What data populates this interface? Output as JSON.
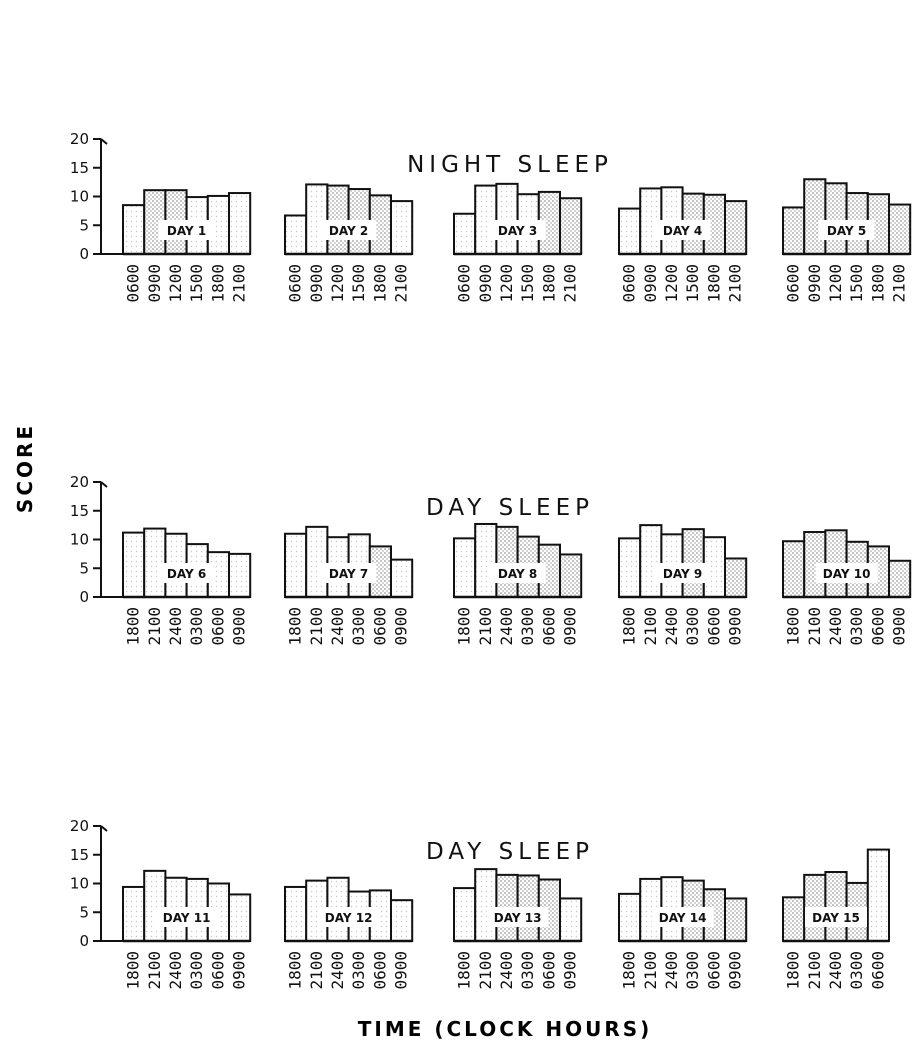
{
  "figure": {
    "yaxis_title": "SCORE",
    "xaxis_title": "TIME (CLOCK HOURS)"
  },
  "style": {
    "ink": "#111111",
    "stipple": "#9a9a9a",
    "background": "#ffffff"
  },
  "chart_data": [
    {
      "type": "bar",
      "title": "NIGHT SLEEP",
      "ylim": [
        0,
        20
      ],
      "yticks": [
        "0",
        "5",
        "10",
        "15",
        "20"
      ],
      "days": [
        {
          "label": "DAY 1",
          "categories": [
            "0600",
            "0900",
            "1200",
            "1500",
            "1800",
            "2100"
          ],
          "values": [
            8.5,
            11.1,
            11.1,
            9.9,
            10.1,
            10.6
          ]
        },
        {
          "label": "DAY 2",
          "categories": [
            "0600",
            "0900",
            "1200",
            "1500",
            "1800",
            "2100"
          ],
          "values": [
            6.7,
            12.1,
            11.9,
            11.3,
            10.2,
            9.2
          ]
        },
        {
          "label": "DAY 3",
          "categories": [
            "0600",
            "0900",
            "1200",
            "1500",
            "1800",
            "2100"
          ],
          "values": [
            7.0,
            11.9,
            12.2,
            10.4,
            10.8,
            9.7
          ]
        },
        {
          "label": "DAY 4",
          "categories": [
            "0600",
            "0900",
            "1200",
            "1500",
            "1800",
            "2100"
          ],
          "values": [
            7.9,
            11.4,
            11.6,
            10.5,
            10.3,
            9.2
          ]
        },
        {
          "label": "DAY 5",
          "categories": [
            "0600",
            "0900",
            "1200",
            "1500",
            "1800",
            "2100"
          ],
          "values": [
            8.1,
            13.0,
            12.3,
            10.6,
            10.4,
            8.6
          ]
        }
      ]
    },
    {
      "type": "bar",
      "title": "DAY SLEEP",
      "ylim": [
        0,
        20
      ],
      "yticks": [
        "0",
        "5",
        "10",
        "15",
        "20"
      ],
      "days": [
        {
          "label": "DAY 6",
          "categories": [
            "1800",
            "2100",
            "2400",
            "0300",
            "0600",
            "0900"
          ],
          "values": [
            11.2,
            11.9,
            11.0,
            9.2,
            7.8,
            7.5
          ]
        },
        {
          "label": "DAY 7",
          "categories": [
            "1800",
            "2100",
            "2400",
            "0300",
            "0600",
            "0900"
          ],
          "values": [
            11.0,
            12.2,
            10.4,
            10.9,
            8.8,
            6.5
          ]
        },
        {
          "label": "DAY 8",
          "categories": [
            "1800",
            "2100",
            "2400",
            "0300",
            "0600",
            "0900"
          ],
          "values": [
            10.2,
            12.7,
            12.2,
            10.5,
            9.1,
            7.4
          ]
        },
        {
          "label": "DAY 9",
          "categories": [
            "1800",
            "2100",
            "2400",
            "0300",
            "0600",
            "0900"
          ],
          "values": [
            10.2,
            12.5,
            10.9,
            11.8,
            10.4,
            6.7
          ]
        },
        {
          "label": "DAY 10",
          "categories": [
            "1800",
            "2100",
            "2400",
            "0300",
            "0600",
            "0900"
          ],
          "values": [
            9.7,
            11.3,
            11.6,
            9.6,
            8.8,
            6.3
          ]
        }
      ]
    },
    {
      "type": "bar",
      "title": "DAY SLEEP",
      "ylim": [
        0,
        20
      ],
      "yticks": [
        "0",
        "5",
        "10",
        "15",
        "20"
      ],
      "days": [
        {
          "label": "DAY 11",
          "categories": [
            "1800",
            "2100",
            "2400",
            "0300",
            "0600",
            "0900"
          ],
          "values": [
            9.4,
            12.2,
            11.0,
            10.8,
            10.0,
            8.1
          ]
        },
        {
          "label": "DAY 12",
          "categories": [
            "1800",
            "2100",
            "2400",
            "0300",
            "0600",
            "0900"
          ],
          "values": [
            9.4,
            10.5,
            11.0,
            8.6,
            8.8,
            7.1
          ]
        },
        {
          "label": "DAY 13",
          "categories": [
            "1800",
            "2100",
            "2400",
            "0300",
            "0600",
            "0900"
          ],
          "values": [
            9.2,
            12.5,
            11.5,
            11.4,
            10.7,
            7.4
          ]
        },
        {
          "label": "DAY 14",
          "categories": [
            "1800",
            "2100",
            "2400",
            "0300",
            "0600",
            "0900"
          ],
          "values": [
            8.2,
            10.8,
            11.1,
            10.5,
            9.0,
            7.4
          ]
        },
        {
          "label": "DAY 15",
          "categories": [
            "1800",
            "2100",
            "2400",
            "0300",
            "0600"
          ],
          "values": [
            7.6,
            11.5,
            12.0,
            10.1,
            15.9
          ]
        }
      ]
    }
  ]
}
